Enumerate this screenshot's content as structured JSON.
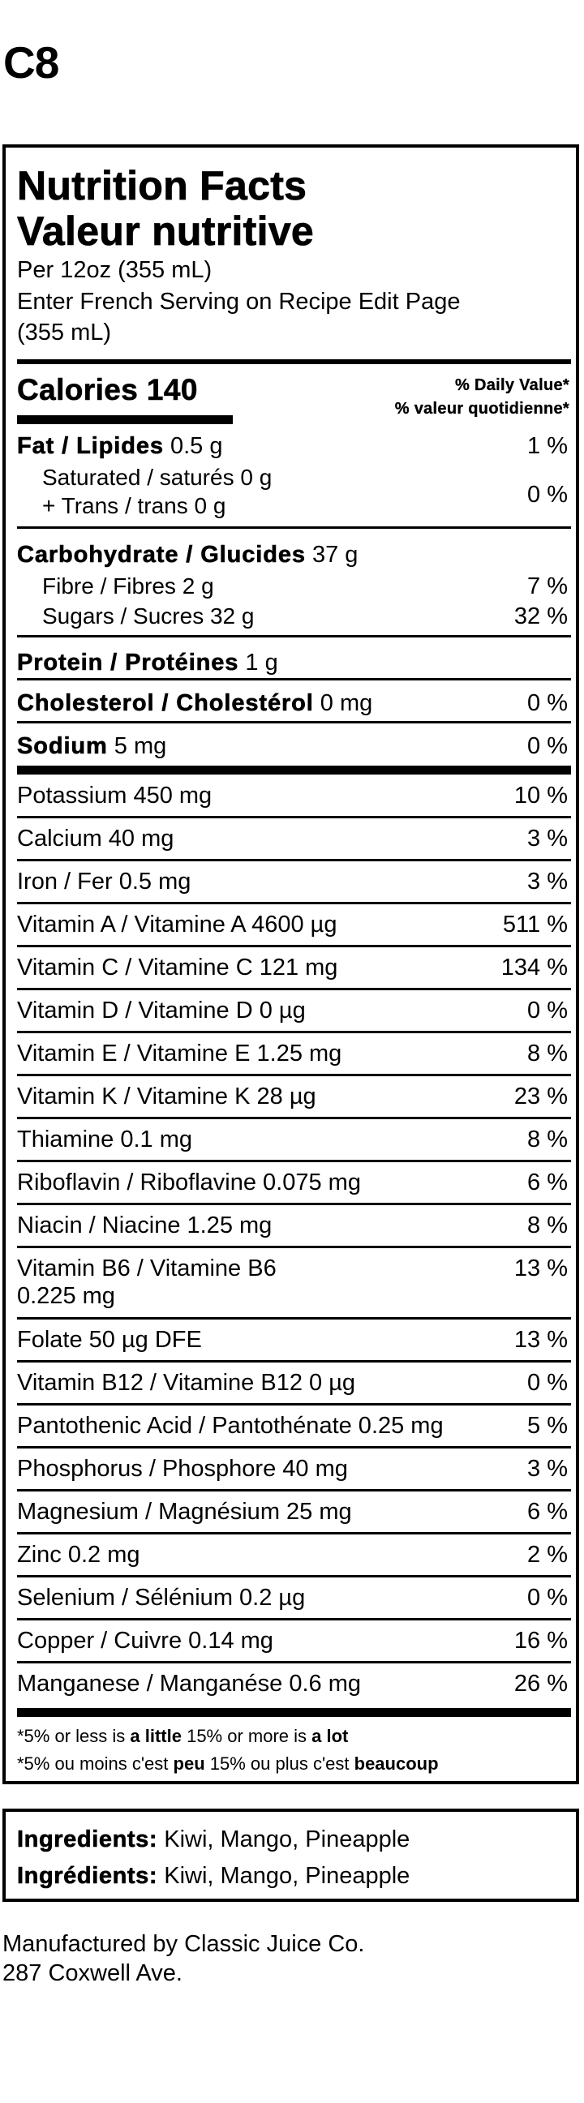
{
  "label_code": "C8",
  "nutrition_facts": {
    "title_en": "Nutrition Facts",
    "title_fr": "Valeur nutritive",
    "serving_en": "Per 12oz (355 mL)",
    "serving_fr": "Enter French Serving on Recipe Edit Page",
    "serving_fr_amount": "(355 mL)",
    "calories_label": "Calories",
    "calories_value": "140",
    "dv_header_en": "% Daily Value*",
    "dv_header_fr": "% valeur quotidienne*",
    "fat": {
      "name": "Fat / Lipides",
      "amount": "0.5 g",
      "dv": "1 %"
    },
    "saturated": {
      "name": "Saturated / saturés",
      "amount": "0 g"
    },
    "trans": {
      "name": "+ Trans / trans",
      "amount": "0 g"
    },
    "sat_trans_dv": "0 %",
    "carbohydrate": {
      "name": "Carbohydrate / Glucides",
      "amount": "37 g"
    },
    "fibre": {
      "name": "Fibre / Fibres",
      "amount": "2 g",
      "dv": "7 %"
    },
    "sugars": {
      "name": "Sugars / Sucres",
      "amount": "32 g",
      "dv": "32 %"
    },
    "protein": {
      "name": "Protein / Protéines",
      "amount": "1 g"
    },
    "cholesterol": {
      "name": "Cholesterol / Cholestérol",
      "amount": "0 mg",
      "dv": "0 %"
    },
    "sodium": {
      "name": "Sodium",
      "amount": "5 mg",
      "dv": "0 %"
    },
    "micronutrients": [
      {
        "label": "Potassium 450 mg",
        "dv": "10 %"
      },
      {
        "label": "Calcium 40 mg",
        "dv": "3 %"
      },
      {
        "label": "Iron / Fer 0.5 mg",
        "dv": "3 %"
      },
      {
        "label": "Vitamin A / Vitamine A 4600 µg",
        "dv": "511 %"
      },
      {
        "label": "Vitamin C / Vitamine C 121 mg",
        "dv": "134 %"
      },
      {
        "label": "Vitamin D / Vitamine D 0 µg",
        "dv": "0 %"
      },
      {
        "label": "Vitamin E / Vitamine E 1.25 mg",
        "dv": "8 %"
      },
      {
        "label": "Vitamin K / Vitamine K 28 µg",
        "dv": "23 %"
      },
      {
        "label": "Thiamine 0.1 mg",
        "dv": "8 %"
      },
      {
        "label": "Riboflavin / Riboflavine 0.075 mg",
        "dv": "6 %"
      },
      {
        "label": "Niacin / Niacine 1.25 mg",
        "dv": "8 %"
      },
      {
        "label": "Vitamin B6 / Vitamine B6",
        "label_line2": "0.225 mg",
        "dv": "13 %"
      },
      {
        "label": "Folate 50 µg DFE",
        "dv": "13 %"
      },
      {
        "label": "Vitamin B12 / Vitamine B12 0 µg",
        "dv": "0 %"
      },
      {
        "label": "Pantothenic Acid / Pantothénate 0.25 mg",
        "dv": "5 %"
      },
      {
        "label": "Phosphorus / Phosphore 40 mg",
        "dv": "3 %"
      },
      {
        "label": "Magnesium / Magnésium 25 mg",
        "dv": "6 %"
      },
      {
        "label": "Zinc 0.2 mg",
        "dv": "2 %"
      },
      {
        "label": "Selenium / Sélénium 0.2 µg",
        "dv": "0 %"
      },
      {
        "label": "Copper / Cuivre 0.14 mg",
        "dv": "16 %"
      },
      {
        "label": "Manganese / Manganése 0.6 mg",
        "dv": "26 %"
      }
    ],
    "footnote_en": {
      "pre": "*5% or less is ",
      "b1": "a little",
      "mid": " 15% or more is ",
      "b2": "a lot"
    },
    "footnote_fr": {
      "pre": "*5% ou moins c'est ",
      "b1": "peu",
      "mid": " 15% ou plus c'est ",
      "b2": "beaucoup"
    }
  },
  "ingredients": {
    "label_en": "Ingredients:",
    "label_fr": "Ingrédients:",
    "list_en": " Kiwi, Mango, Pineapple",
    "list_fr": " Kiwi, Mango, Pineapple"
  },
  "manufacturer": {
    "line1": "Manufactured by Classic Juice Co.",
    "line2": "287 Coxwell Ave."
  }
}
